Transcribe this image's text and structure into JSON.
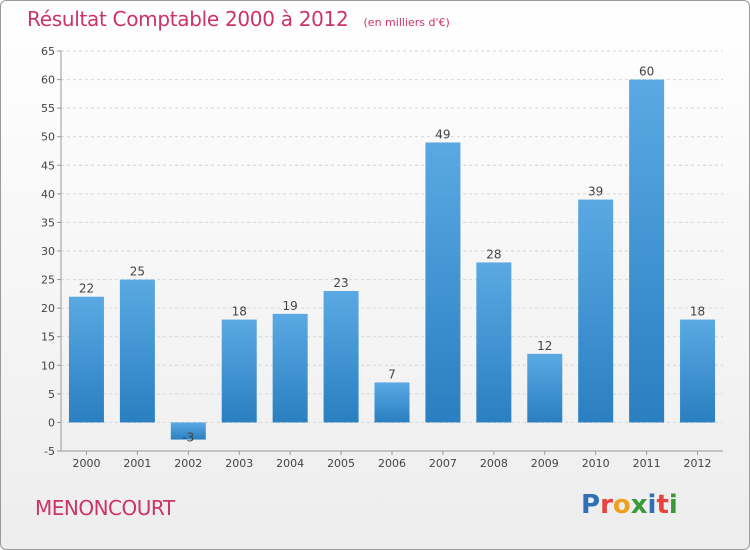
{
  "header": {
    "title": "Résultat Comptable 2000 à 2012",
    "subtitle": "(en milliers d'€)"
  },
  "footer": {
    "place_name": "MENONCOURT",
    "brand_letters": [
      {
        "ch": "P",
        "color": "#2f6fb5"
      },
      {
        "ch": "r",
        "color": "#e8423c"
      },
      {
        "ch": "o",
        "color": "#f0a020"
      },
      {
        "ch": "x",
        "color": "#3a9a3a"
      },
      {
        "ch": "i",
        "color": "#2f6fb5"
      },
      {
        "ch": "t",
        "color": "#e8423c"
      },
      {
        "ch": "i",
        "color": "#3a9a3a"
      }
    ]
  },
  "chart_data": {
    "type": "bar",
    "title": "Résultat Comptable 2000 à 2012",
    "subtitle": "(en milliers d'€)",
    "categories": [
      "2000",
      "2001",
      "2002",
      "2003",
      "2004",
      "2005",
      "2006",
      "2007",
      "2008",
      "2009",
      "2010",
      "2011",
      "2012"
    ],
    "values": [
      22,
      25,
      -3,
      18,
      19,
      23,
      7,
      49,
      28,
      12,
      39,
      60,
      18
    ],
    "data_labels": [
      "22",
      "25",
      "-3",
      "18",
      "19",
      "23",
      "7",
      "49",
      "28",
      "12",
      "39",
      "60",
      "18"
    ],
    "ylim": [
      -5,
      65
    ],
    "yticks": [
      -5,
      0,
      5,
      10,
      15,
      20,
      25,
      30,
      35,
      40,
      45,
      50,
      55,
      60,
      65
    ],
    "grid": true,
    "colors": {
      "bar_light": "#5aa9e4",
      "bar_dark": "#2a7fc0",
      "grid": "#d6d6d6",
      "axis": "#999999",
      "text": "#444444"
    }
  }
}
